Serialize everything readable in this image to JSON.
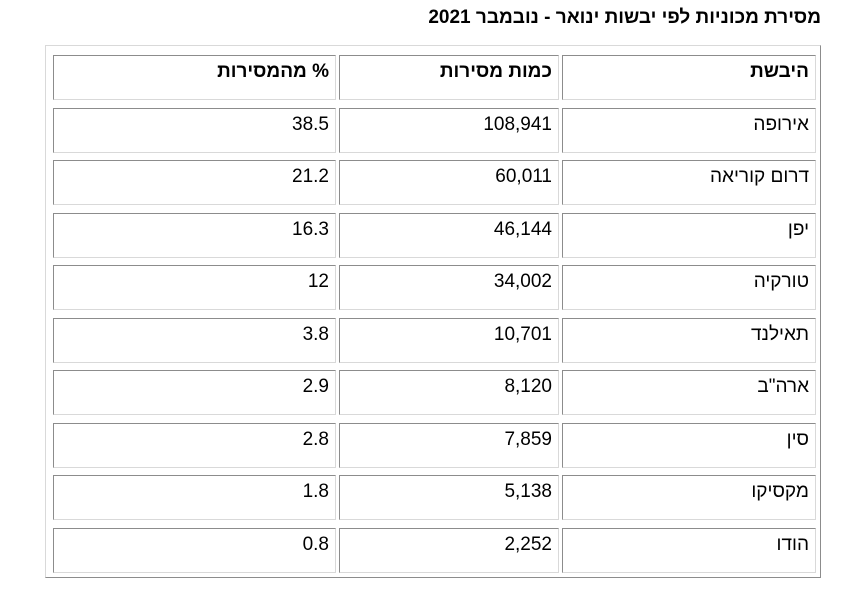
{
  "title": "מסירת מכוניות לפי יבשות ינואר - נובמבר 2021",
  "table": {
    "headers": {
      "country": "היבשת",
      "quantity": "כמות מסירות",
      "percent": "% מהמסירות"
    },
    "rows": [
      {
        "country": "אירופה",
        "quantity": "108,941",
        "percent": "38.5"
      },
      {
        "country": "דרום קוריאה",
        "quantity": "60,011",
        "percent": "21.2"
      },
      {
        "country": "יפן",
        "quantity": "46,144",
        "percent": "16.3"
      },
      {
        "country": "טורקיה",
        "quantity": "34,002",
        "percent": "12"
      },
      {
        "country": "תאילנד",
        "quantity": "10,701",
        "percent": "3.8"
      },
      {
        "country": "ארה\"ב",
        "quantity": "8,120",
        "percent": "2.9"
      },
      {
        "country": "סין",
        "quantity": "7,859",
        "percent": "2.8"
      },
      {
        "country": "מקסיקו",
        "quantity": "5,138",
        "percent": "1.8"
      },
      {
        "country": "הודו",
        "quantity": "2,252",
        "percent": "0.8"
      }
    ]
  }
}
